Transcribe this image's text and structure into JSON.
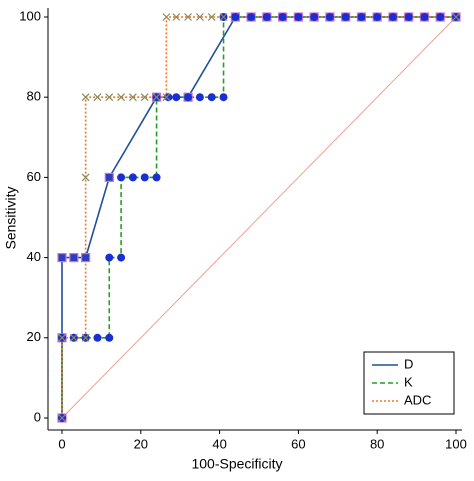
{
  "chart_data": {
    "type": "line",
    "xlabel": "100-Specificity",
    "ylabel": "Sensitivity",
    "xlim": [
      0,
      100
    ],
    "ylim": [
      0,
      100
    ],
    "xticks": [
      0,
      20,
      40,
      60,
      80,
      100
    ],
    "yticks": [
      0,
      20,
      40,
      60,
      80,
      100
    ],
    "reference_color": "#f0a090",
    "legend": "lower right",
    "series": [
      {
        "name": "D",
        "color": "#1f4e9c",
        "dash": "solid",
        "marker": "square",
        "x": [
          0,
          0,
          0,
          3,
          6,
          12,
          24,
          32,
          44,
          48,
          52,
          56,
          60,
          64,
          68,
          72,
          76,
          80,
          84,
          88,
          92,
          96,
          100
        ],
        "values": [
          0,
          20,
          40,
          40,
          40,
          60,
          80,
          80,
          100,
          100,
          100,
          100,
          100,
          100,
          100,
          100,
          100,
          100,
          100,
          100,
          100,
          100,
          100
        ]
      },
      {
        "name": "K",
        "color": "#22a022",
        "dash": "dashed",
        "marker": "circle",
        "x": [
          0,
          0,
          3,
          6,
          9,
          12,
          12,
          15,
          15,
          18,
          21,
          24,
          24,
          27,
          29,
          32,
          35,
          38,
          41,
          41,
          44,
          48,
          52,
          56,
          60,
          64,
          68,
          72,
          76,
          80,
          84,
          88,
          92,
          96,
          100
        ],
        "values": [
          0,
          20,
          20,
          20,
          20,
          20,
          40,
          40,
          60,
          60,
          60,
          60,
          80,
          80,
          80,
          80,
          80,
          80,
          80,
          100,
          100,
          100,
          100,
          100,
          100,
          100,
          100,
          100,
          100,
          100,
          100,
          100,
          100,
          100,
          100
        ]
      },
      {
        "name": "ADC",
        "color": "#f07820",
        "dash": "dotted",
        "marker": "x",
        "x": [
          0,
          0,
          3,
          6,
          6,
          6,
          9,
          12,
          15,
          18,
          21,
          24,
          26.5,
          26.5,
          29,
          32,
          35,
          38,
          41,
          100
        ],
        "values": [
          0,
          20,
          20,
          20,
          60,
          80,
          80,
          80,
          80,
          80,
          80,
          80,
          80,
          100,
          100,
          100,
          100,
          100,
          100,
          100
        ]
      }
    ]
  }
}
